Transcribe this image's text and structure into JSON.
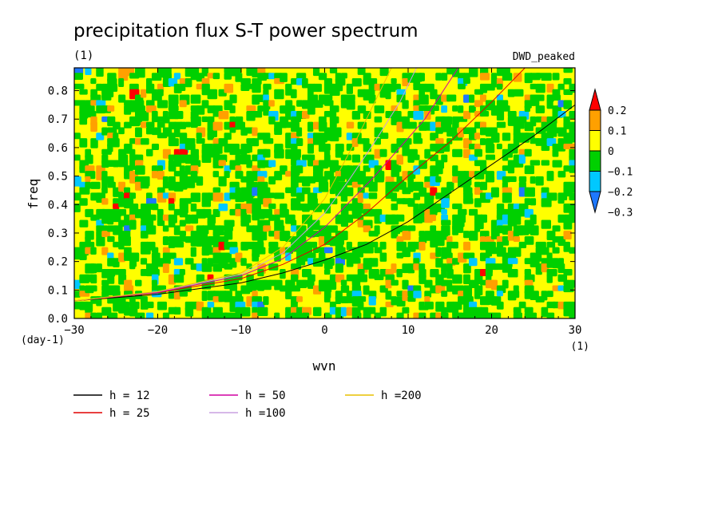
{
  "chart_data": {
    "type": "heatmap",
    "title": "precipitation flux S-T power spectrum",
    "subtitle_left": "(1)",
    "subtitle_right": "DWD_peaked",
    "xlabel": "wvn",
    "ylabel": "freq",
    "x_unit": "(1)",
    "y_unit": "(day-1)",
    "xlim": [
      -30,
      30
    ],
    "ylim": [
      0,
      0.88
    ],
    "x_ticks": [
      -30,
      -20,
      -10,
      0,
      10,
      20,
      30
    ],
    "x_tick_labels": [
      "-30",
      "-20",
      "-10",
      "0",
      "10",
      "20",
      "30"
    ],
    "y_ticks": [
      0,
      0.1,
      0.2,
      0.3,
      0.4,
      0.5,
      0.6,
      0.7,
      0.8
    ],
    "y_tick_labels": [
      "0.0",
      "0.1",
      "0.2",
      "0.3",
      "0.4",
      "0.5",
      "0.6",
      "0.7",
      "0.8"
    ],
    "colorbar": {
      "levels": [
        -0.3,
        -0.2,
        -0.1,
        0,
        0.1,
        0.2
      ],
      "labels": [
        "-0.3",
        "-0.2",
        "-0.1",
        "0",
        "0.1",
        "0.2"
      ],
      "colors": [
        "#1e78ff",
        "#00c8ff",
        "#00d000",
        "#ffff00",
        "#ffa000",
        "#ff0000"
      ]
    },
    "series": [
      {
        "name": "h = 12",
        "color": "#000000",
        "x": [
          -30,
          -20,
          -10,
          -5,
          0,
          5,
          10,
          15,
          20,
          25,
          30
        ],
        "y": [
          0.062,
          0.085,
          0.125,
          0.16,
          0.205,
          0.26,
          0.34,
          0.44,
          0.54,
          0.64,
          0.75
        ]
      },
      {
        "name": "h = 25",
        "color": "#e00000",
        "x": [
          -30,
          -20,
          -10,
          -5,
          0,
          5,
          10,
          15,
          20,
          24
        ],
        "y": [
          0.062,
          0.09,
          0.14,
          0.19,
          0.26,
          0.37,
          0.5,
          0.62,
          0.76,
          0.88
        ]
      },
      {
        "name": "h = 50",
        "color": "#d000a0",
        "x": [
          -30,
          -20,
          -10,
          -5,
          0,
          3,
          6,
          9,
          12,
          16
        ],
        "y": [
          0.062,
          0.092,
          0.15,
          0.21,
          0.32,
          0.41,
          0.5,
          0.6,
          0.7,
          0.88
        ]
      },
      {
        "name": "h =100",
        "color": "#c8a0e0",
        "x": [
          -30,
          -20,
          -10,
          -5,
          0,
          3,
          6,
          9,
          11
        ],
        "y": [
          0.062,
          0.094,
          0.155,
          0.23,
          0.37,
          0.49,
          0.62,
          0.76,
          0.88
        ]
      },
      {
        "name": "h =200",
        "color": "#e8c000",
        "x": [
          -30,
          -20,
          -10,
          -5,
          0,
          2,
          4,
          6,
          8
        ],
        "y": [
          0.062,
          0.095,
          0.16,
          0.25,
          0.42,
          0.53,
          0.64,
          0.76,
          0.88
        ]
      }
    ],
    "grid": false,
    "legend_position": "bottom"
  }
}
